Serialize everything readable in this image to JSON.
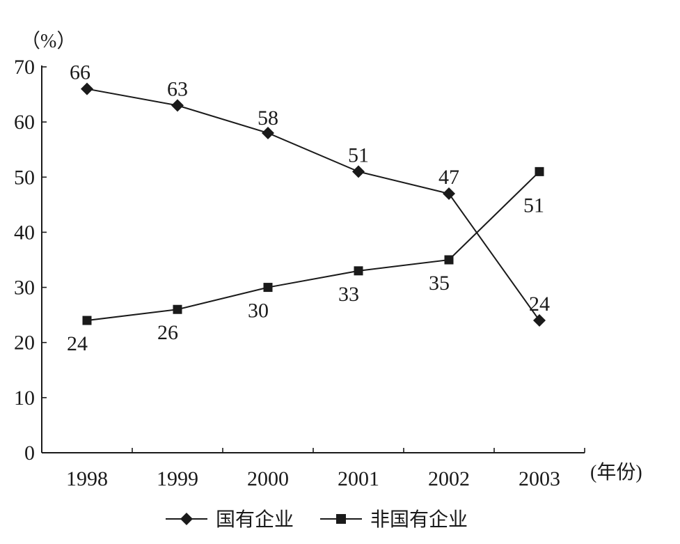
{
  "chart_data": {
    "type": "line",
    "categories": [
      "1998",
      "1999",
      "2000",
      "2001",
      "2002",
      "2003"
    ],
    "ylim": [
      0,
      70
    ],
    "yticks": [
      "0",
      "10",
      "20",
      "30",
      "40",
      "50",
      "60",
      "70"
    ],
    "y_unit": "（%）",
    "x_unit": "(年份)",
    "grid": false,
    "legend_position": "bottom",
    "series": [
      {
        "name": "国有企业",
        "marker": "diamond",
        "values": [
          66,
          63,
          58,
          51,
          47,
          24
        ],
        "labels": [
          "66",
          "63",
          "58",
          "51",
          "47",
          "24"
        ]
      },
      {
        "name": "非国有企业",
        "marker": "square",
        "values": [
          24,
          26,
          30,
          33,
          35,
          51
        ],
        "labels": [
          "24",
          "26",
          "30",
          "33",
          "35",
          "51"
        ]
      }
    ],
    "colors": {
      "line": "#1a1a1a",
      "marker": "#1a1a1a"
    }
  }
}
